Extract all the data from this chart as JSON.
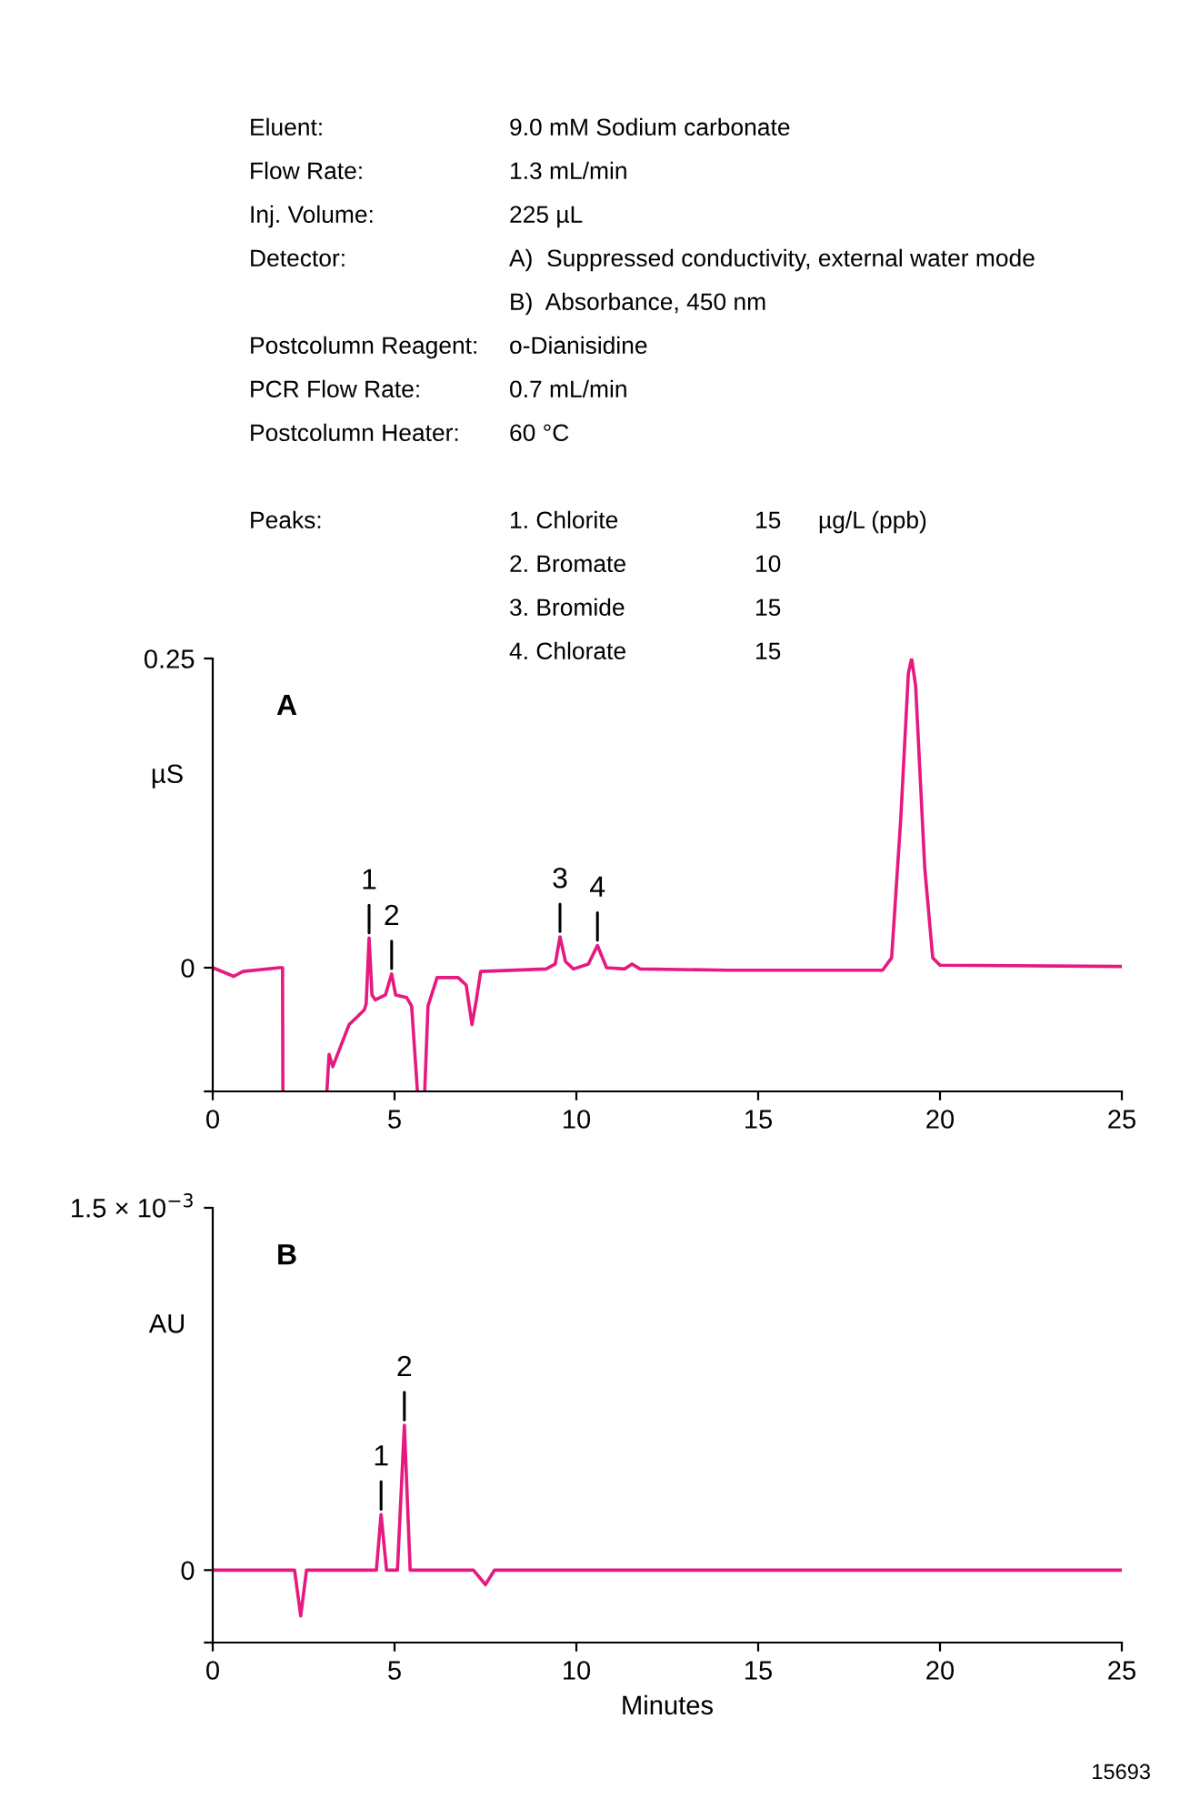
{
  "chart_data": [
    {
      "type": "other",
      "annotations": [
        "Eluent:",
        "9.0 mM Sodium carbonate",
        "Flow Rate:",
        "1.3 mL/min",
        "Inj. Volume:",
        "225 µL",
        "Detector:",
        "A)  Suppressed conductivity, external water mode",
        "B)  Absorbance, 450 nm",
        "Postcolumn Reagent:",
        "o-Dianisidine",
        "PCR Flow Rate:",
        "0.7 mL/min",
        "Postcolumn Heater:",
        "60 °C",
        "Peaks:",
        "1. Chlorite",
        "15",
        "µg/L (ppb)",
        "2. Bromate",
        "10",
        "3. Bromide",
        "15",
        "4. Chlorate",
        "15"
      ]
    },
    {
      "type": "line",
      "ylabel": "µS",
      "xlim": [
        0,
        25
      ],
      "xticks": [
        0,
        5,
        10,
        15,
        20,
        25
      ],
      "ylim": [
        -0.1,
        0.25
      ],
      "yticks": [
        {
          "value": -0.1,
          "label": null
        },
        0,
        0.25
      ],
      "grid": false,
      "legend": false,
      "annotations": [
        "A",
        {
          "text": "1",
          "x": 4.3,
          "y": 0.024
        },
        {
          "text": "2",
          "x": 4.92,
          "y": -0.005
        },
        {
          "text": "3",
          "x": 9.55,
          "y": 0.025
        },
        {
          "text": "4",
          "x": 10.58,
          "y": 0.018
        }
      ],
      "series": [
        {
          "color": "#e6197f",
          "x": [
            0,
            0.58,
            0.83,
            1.83,
            1.92,
            1.93,
            3.1,
            3.14,
            3.2,
            3.3,
            3.75,
            4.0,
            4.17,
            4.22,
            4.3,
            4.38,
            4.47,
            4.75,
            4.92,
            5.03,
            5.33,
            5.47,
            5.63,
            5.73,
            5.83,
            5.92,
            6.17,
            6.75,
            6.97,
            7.13,
            7.25,
            7.37,
            9.17,
            9.42,
            9.55,
            9.7,
            9.92,
            10.33,
            10.58,
            10.83,
            11.33,
            11.53,
            11.75,
            14.17,
            18.42,
            18.67,
            18.92,
            19.13,
            19.22,
            19.33,
            19.58,
            19.8,
            20.0,
            25.0
          ],
          "values": [
            0.0,
            -0.007,
            -0.003,
            0.0,
            0.0,
            -0.1,
            null,
            -0.1,
            -0.07,
            -0.08,
            -0.046,
            -0.039,
            -0.034,
            -0.029,
            0.024,
            -0.022,
            -0.026,
            -0.022,
            -0.005,
            -0.022,
            -0.024,
            -0.031,
            -0.1,
            null,
            -0.1,
            -0.031,
            -0.008,
            -0.008,
            -0.014,
            -0.046,
            -0.026,
            -0.003,
            -0.001,
            0.003,
            0.025,
            0.005,
            -0.001,
            0.003,
            0.018,
            0.0,
            -0.001,
            0.003,
            -0.001,
            -0.002,
            -0.002,
            0.008,
            0.12,
            0.238,
            0.25,
            0.228,
            0.081,
            0.008,
            0.002,
            0.001
          ]
        }
      ]
    },
    {
      "type": "line",
      "ylabel": "AU",
      "xlabel": "Minutes",
      "xlim": [
        0,
        25
      ],
      "xticks": [
        0,
        5,
        10,
        15,
        20,
        25
      ],
      "ylim": [
        -0.0003,
        0.0015
      ],
      "yticks": [
        {
          "value": -0.0003,
          "label": null
        },
        0,
        {
          "value": 0.0015,
          "label": "1.5 × 10$^{−3}$"
        }
      ],
      "grid": false,
      "legend": false,
      "annotations": [
        "B",
        {
          "text": "1",
          "x": 4.63,
          "y": 0.00023
        },
        {
          "text": "2",
          "x": 5.27,
          "y": 0.0006
        },
        "15693"
      ],
      "series": [
        {
          "color": "#e6197f",
          "x": [
            0,
            2.25,
            2.42,
            2.58,
            2.83,
            3.17,
            4.5,
            4.63,
            4.78,
            5.08,
            5.27,
            5.43,
            5.67,
            7.17,
            7.5,
            7.75,
            14.17,
            25.0
          ],
          "values": [
            0.0,
            0.0,
            -0.00019,
            0.0,
            0.0,
            0.0,
            0.0,
            0.00023,
            0.0,
            0.0,
            0.0006,
            0.0,
            0.0,
            0.0,
            -6e-05,
            0.0,
            0.0,
            0.0
          ]
        }
      ]
    }
  ]
}
